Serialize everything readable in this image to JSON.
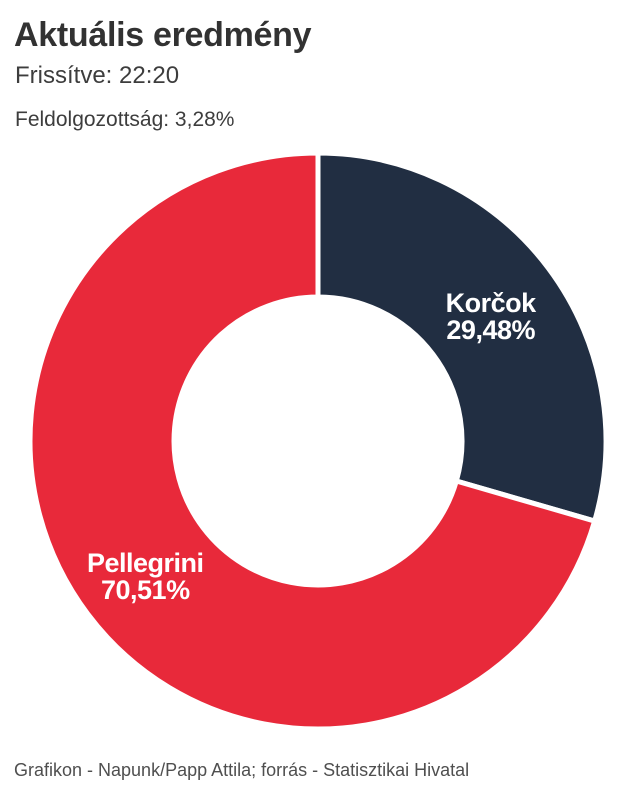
{
  "header": {
    "title": "Aktuális eredmény",
    "updated": "Frissítve: 22:20",
    "processed": "Feldolgozottság: 3,28%"
  },
  "chart_data": {
    "type": "pie",
    "subtype": "donut",
    "title": "Aktuális eredmény",
    "start_angle_deg": 0,
    "direction": "clockwise",
    "inner_radius_ratio": 0.5,
    "legend": "none",
    "labels_inside_slices": true,
    "label_color": "#ffffff",
    "separator_color": "#ffffff",
    "slices": [
      {
        "label": "Korčok",
        "value": 29.48,
        "value_display": "29,48%",
        "color": "#212e42"
      },
      {
        "label": "Pellegrini",
        "value": 70.51,
        "value_display": "70,51%",
        "color": "#e8293a"
      }
    ]
  },
  "footer": {
    "credit": "Grafikon - Napunk/Papp Attila; forrás - Statisztikai Hivatal"
  }
}
